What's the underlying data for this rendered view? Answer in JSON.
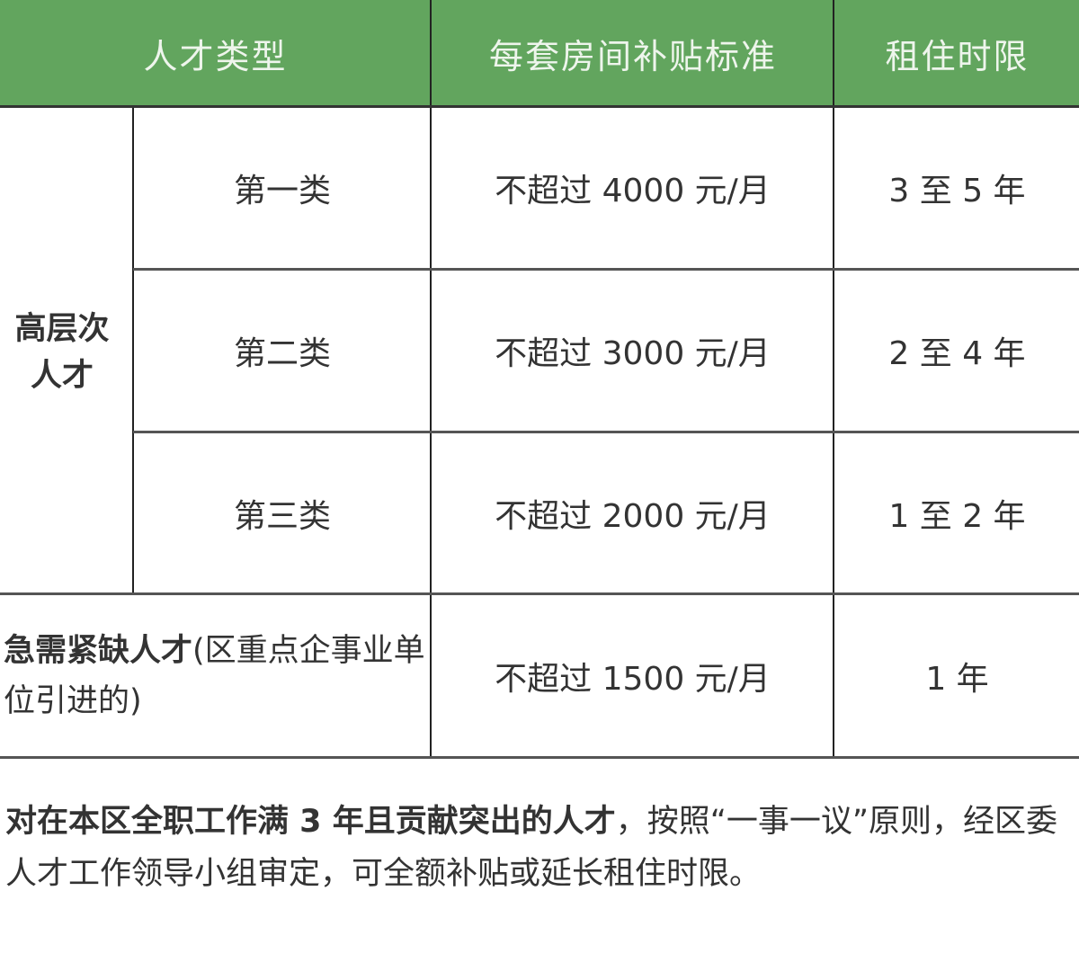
{
  "header": {
    "col1": "人才类型",
    "col2": "每套房间补贴标准",
    "col3": "租住时限"
  },
  "group": {
    "label": "高层次人才"
  },
  "rows": [
    {
      "type": "第一类",
      "subsidy": "不超过 4000 元/月",
      "term": "3 至 5 年"
    },
    {
      "type": "第二类",
      "subsidy": "不超过 3000 元/月",
      "term": "2 至 4 年"
    },
    {
      "type": "第三类",
      "subsidy": "不超过 2000 元/月",
      "term": "1 至 2 年"
    }
  ],
  "urgent": {
    "label_bold": "急需紧缺人才",
    "label_rest": "(区重点企事业单位引进的)",
    "subsidy": "不超过 1500 元/月",
    "term": "1 年"
  },
  "footnote": {
    "bold": "对在本区全职工作满 3 年且贡献突出的人才",
    "rest": "，按照“一事一议”原则，经区委人才工作领导小组审定，可全额补贴或延长租住时限。"
  },
  "colors": {
    "header_bg": "#62a55e"
  }
}
